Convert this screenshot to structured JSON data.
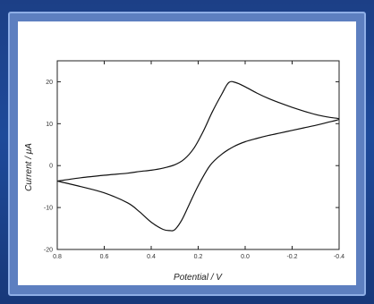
{
  "chart_data": {
    "type": "line",
    "xlabel": "Potential / V",
    "ylabel": "Current / μA",
    "xlim": [
      0.8,
      -0.4
    ],
    "ylim": [
      -20,
      25
    ],
    "x_ticks": [
      0.8,
      0.6,
      0.4,
      0.2,
      0.0,
      -0.2,
      -0.4
    ],
    "x_tick_labels": [
      "0.8",
      "0.6",
      "0.4",
      "0.2",
      "0.0",
      "-0.2",
      "-0.4"
    ],
    "y_ticks": [
      20,
      10,
      0,
      -10,
      -20
    ],
    "y_tick_labels": [
      "20",
      "10",
      "0",
      "-10",
      "-20"
    ],
    "grid": false,
    "series": [
      {
        "x": [
          0.8,
          0.7,
          0.6,
          0.5,
          0.45,
          0.4,
          0.35,
          0.3,
          0.26,
          0.22,
          0.18,
          0.14,
          0.1,
          0.07,
          0.04,
          0.0,
          -0.05,
          -0.1,
          -0.15,
          -0.2,
          -0.25,
          -0.3,
          -0.35,
          -0.4,
          -0.35,
          -0.3,
          -0.25,
          -0.2,
          -0.15,
          -0.1,
          -0.05,
          0.0,
          0.05,
          0.1,
          0.15,
          0.2,
          0.24,
          0.27,
          0.3,
          0.32,
          0.35,
          0.4,
          0.45,
          0.5,
          0.6,
          0.7,
          0.8
        ],
        "y": [
          -3.7,
          -2.9,
          -2.3,
          -1.8,
          -1.4,
          -1.1,
          -0.6,
          0.2,
          1.5,
          4.0,
          8.0,
          12.8,
          17.0,
          19.8,
          19.8,
          18.8,
          17.3,
          16.0,
          14.9,
          13.9,
          13.0,
          12.2,
          11.6,
          11.1,
          10.3,
          9.6,
          9.0,
          8.4,
          7.8,
          7.2,
          6.5,
          5.7,
          4.5,
          2.7,
          0.0,
          -4.8,
          -9.5,
          -13.0,
          -15.3,
          -15.5,
          -15.2,
          -13.5,
          -11.0,
          -8.9,
          -6.5,
          -5.0,
          -3.7
        ]
      }
    ]
  }
}
